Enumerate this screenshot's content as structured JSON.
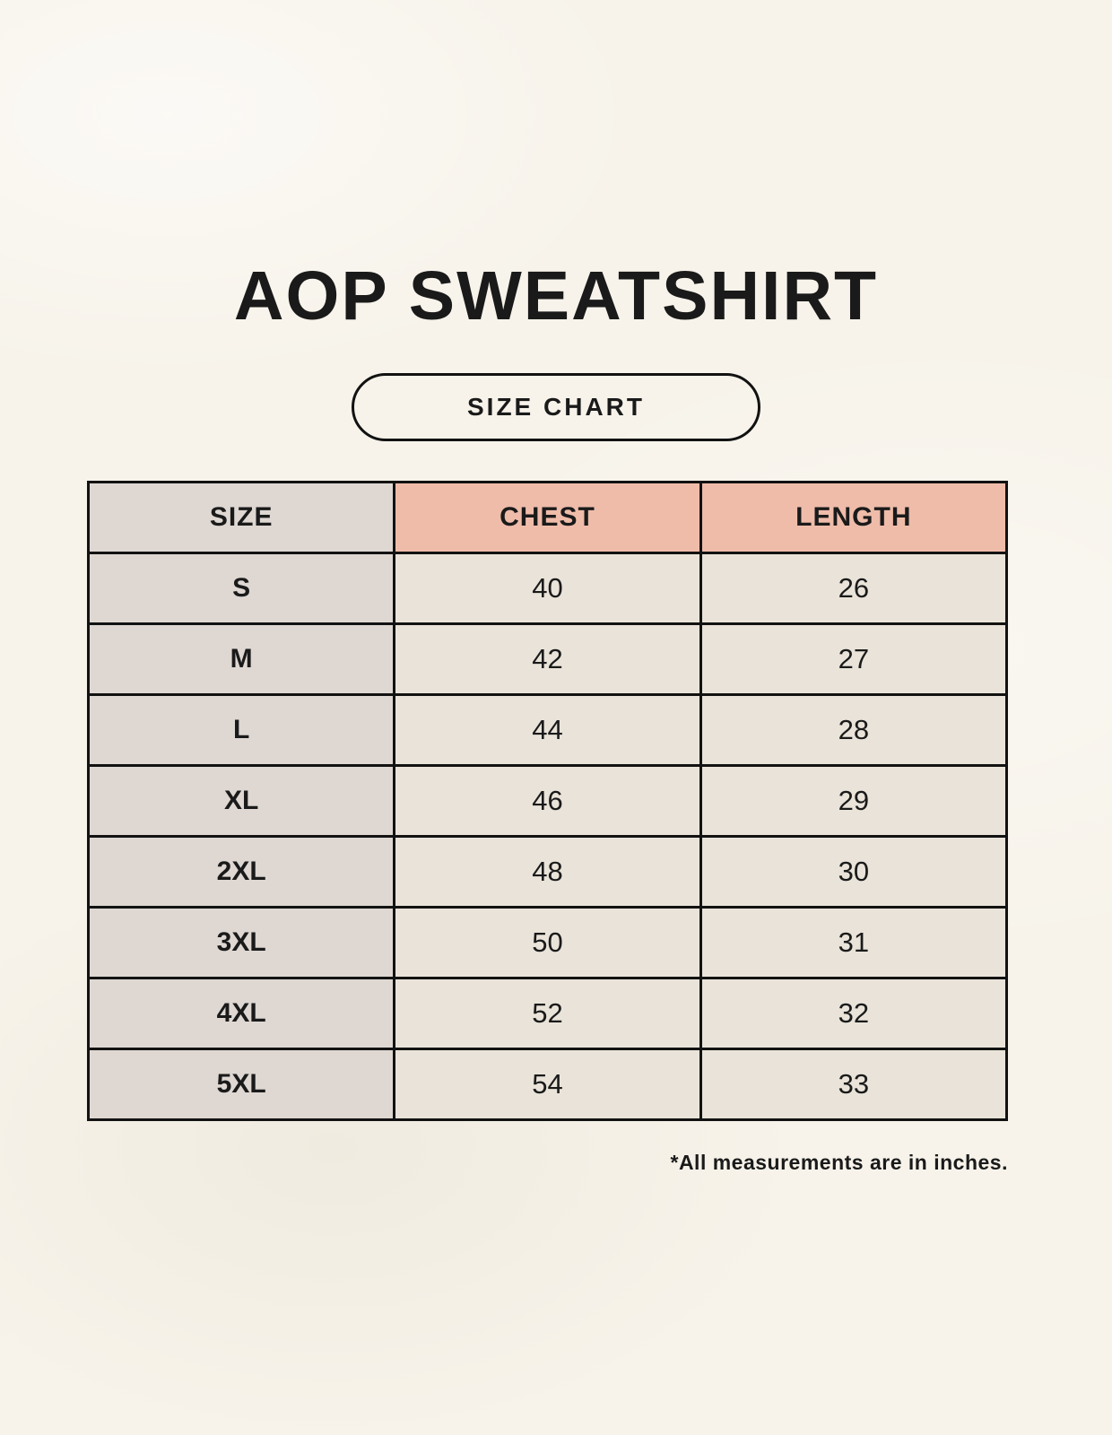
{
  "page": {
    "title": "AOP SWEATSHIRT",
    "badge_label": "SIZE CHART",
    "footnote": "*All measurements are in inches."
  },
  "table": {
    "headers": [
      "SIZE",
      "CHEST",
      "LENGTH"
    ],
    "rows": [
      [
        "S",
        "40",
        "26"
      ],
      [
        "M",
        "42",
        "27"
      ],
      [
        "L",
        "44",
        "28"
      ],
      [
        "XL",
        "46",
        "29"
      ],
      [
        "2XL",
        "48",
        "30"
      ],
      [
        "3XL",
        "50",
        "31"
      ],
      [
        "4XL",
        "52",
        "32"
      ],
      [
        "5XL",
        "54",
        "33"
      ]
    ]
  },
  "colors": {
    "background": "#f7f3ea",
    "size_column": "#ded7d2",
    "header_accent": "#efbcaa",
    "cell": "#e9e3d9",
    "border": "#121212",
    "text": "#1a1a1a"
  },
  "chart_data": {
    "type": "table",
    "title": "AOP SWEATSHIRT",
    "subtitle": "SIZE CHART",
    "columns": [
      "SIZE",
      "CHEST",
      "LENGTH"
    ],
    "rows": [
      {
        "size": "S",
        "chest": 40,
        "length": 26
      },
      {
        "size": "M",
        "chest": 42,
        "length": 27
      },
      {
        "size": "L",
        "chest": 44,
        "length": 28
      },
      {
        "size": "XL",
        "chest": 46,
        "length": 29
      },
      {
        "size": "2XL",
        "chest": 48,
        "length": 30
      },
      {
        "size": "3XL",
        "chest": 50,
        "length": 31
      },
      {
        "size": "4XL",
        "chest": 52,
        "length": 32
      },
      {
        "size": "5XL",
        "chest": 54,
        "length": 33
      }
    ],
    "units": "inches",
    "annotations": [
      "*All measurements are in inches."
    ]
  }
}
